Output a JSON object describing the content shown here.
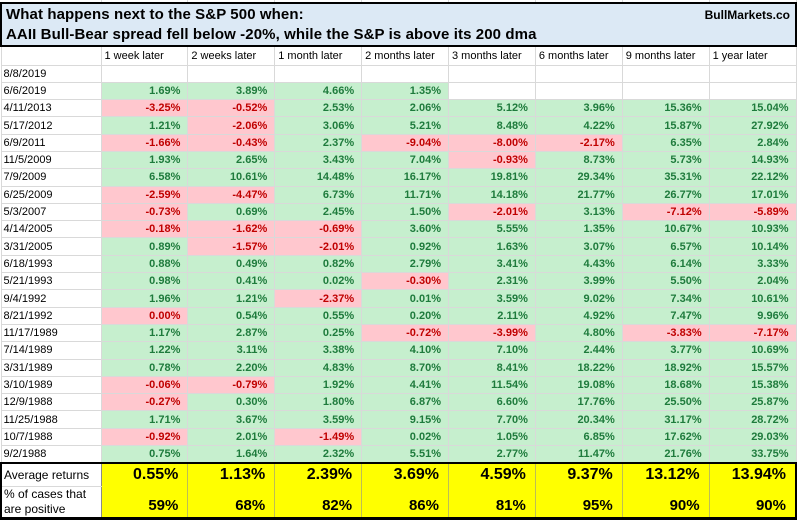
{
  "title": {
    "line1": "What happens next to the S&P 500 when:",
    "line2": "AAII Bull-Bear spread fell below -20%, while the S&P is above its 200 dma",
    "brand": "BullMarkets.co"
  },
  "columns": [
    "1 week later",
    "2 weeks later",
    "1 month later",
    "2 months later",
    "3 months later",
    "6 months later",
    "9 months later",
    "1 year later"
  ],
  "rows": [
    {
      "date": "8/8/2019",
      "values": [
        "",
        "",
        "",
        "",
        "",
        "",
        "",
        ""
      ]
    },
    {
      "date": "6/6/2019",
      "values": [
        "1.69%",
        "3.89%",
        "4.66%",
        "1.35%",
        "",
        "",
        "",
        ""
      ]
    },
    {
      "date": "4/11/2013",
      "values": [
        "-3.25%",
        "-0.52%",
        "2.53%",
        "2.06%",
        "5.12%",
        "3.96%",
        "15.36%",
        "15.04%"
      ]
    },
    {
      "date": "5/17/2012",
      "values": [
        "1.21%",
        "-2.06%",
        "3.06%",
        "5.21%",
        "8.48%",
        "4.22%",
        "15.87%",
        "27.92%"
      ]
    },
    {
      "date": "6/9/2011",
      "values": [
        "-1.66%",
        "-0.43%",
        "2.37%",
        "-9.04%",
        "-8.00%",
        "-2.17%",
        "6.35%",
        "2.84%"
      ]
    },
    {
      "date": "11/5/2009",
      "values": [
        "1.93%",
        "2.65%",
        "3.43%",
        "7.04%",
        "-0.93%",
        "8.73%",
        "5.73%",
        "14.93%"
      ]
    },
    {
      "date": "7/9/2009",
      "values": [
        "6.58%",
        "10.61%",
        "14.48%",
        "16.17%",
        "19.81%",
        "29.34%",
        "35.31%",
        "22.12%"
      ]
    },
    {
      "date": "6/25/2009",
      "values": [
        "-2.59%",
        "-4.47%",
        "6.73%",
        "11.71%",
        "14.18%",
        "21.77%",
        "26.77%",
        "17.01%"
      ]
    },
    {
      "date": "5/3/2007",
      "values": [
        "-0.73%",
        "0.69%",
        "2.45%",
        "1.50%",
        "-2.01%",
        "3.13%",
        "-7.12%",
        "-5.89%"
      ]
    },
    {
      "date": "4/14/2005",
      "values": [
        "-0.18%",
        "-1.62%",
        "-0.69%",
        "3.60%",
        "5.55%",
        "1.35%",
        "10.67%",
        "10.93%"
      ]
    },
    {
      "date": "3/31/2005",
      "values": [
        "0.89%",
        "-1.57%",
        "-2.01%",
        "0.92%",
        "1.63%",
        "3.07%",
        "6.57%",
        "10.14%"
      ]
    },
    {
      "date": "6/18/1993",
      "values": [
        "0.88%",
        "0.49%",
        "0.82%",
        "2.79%",
        "3.41%",
        "4.43%",
        "6.14%",
        "3.33%"
      ]
    },
    {
      "date": "5/21/1993",
      "values": [
        "0.98%",
        "0.41%",
        "0.02%",
        "-0.30%",
        "2.31%",
        "3.99%",
        "5.50%",
        "2.04%"
      ]
    },
    {
      "date": "9/4/1992",
      "values": [
        "1.96%",
        "1.21%",
        "-2.37%",
        "0.01%",
        "3.59%",
        "9.02%",
        "7.34%",
        "10.61%"
      ]
    },
    {
      "date": "8/21/1992",
      "values": [
        "0.00%",
        "0.54%",
        "0.55%",
        "0.20%",
        "2.11%",
        "4.92%",
        "7.47%",
        "9.96%"
      ]
    },
    {
      "date": "11/17/1989",
      "values": [
        "1.17%",
        "2.87%",
        "0.25%",
        "-0.72%",
        "-3.99%",
        "4.80%",
        "-3.83%",
        "-7.17%"
      ]
    },
    {
      "date": "7/14/1989",
      "values": [
        "1.22%",
        "3.11%",
        "3.38%",
        "4.10%",
        "7.10%",
        "2.44%",
        "3.77%",
        "10.69%"
      ]
    },
    {
      "date": "3/31/1989",
      "values": [
        "0.78%",
        "2.20%",
        "4.83%",
        "8.70%",
        "8.41%",
        "18.22%",
        "18.92%",
        "15.57%"
      ]
    },
    {
      "date": "3/10/1989",
      "values": [
        "-0.06%",
        "-0.79%",
        "1.92%",
        "4.41%",
        "11.54%",
        "19.08%",
        "18.68%",
        "15.38%"
      ]
    },
    {
      "date": "12/9/1988",
      "values": [
        "-0.27%",
        "0.30%",
        "1.80%",
        "6.87%",
        "6.60%",
        "17.76%",
        "25.50%",
        "25.87%"
      ]
    },
    {
      "date": "11/25/1988",
      "values": [
        "1.71%",
        "3.67%",
        "3.59%",
        "9.15%",
        "7.70%",
        "20.34%",
        "31.17%",
        "28.72%"
      ]
    },
    {
      "date": "10/7/1988",
      "values": [
        "-0.92%",
        "2.01%",
        "-1.49%",
        "0.02%",
        "1.05%",
        "6.85%",
        "17.62%",
        "29.03%"
      ]
    },
    {
      "date": "9/2/1988",
      "values": [
        "0.75%",
        "1.64%",
        "2.32%",
        "5.51%",
        "2.77%",
        "11.47%",
        "21.76%",
        "33.75%"
      ]
    }
  ],
  "summary": {
    "average_label": "Average returns",
    "positive_label_line1": "% of cases that",
    "positive_label_line2": "are positive",
    "average_values": [
      "0.55%",
      "1.13%",
      "2.39%",
      "3.69%",
      "4.59%",
      "9.37%",
      "13.12%",
      "13.94%"
    ],
    "positive_values": [
      "59%",
      "68%",
      "82%",
      "86%",
      "81%",
      "95%",
      "90%",
      "90%"
    ]
  },
  "colors": {
    "title_bg": "#dce9f5",
    "positive_bg": "#c6efce",
    "positive_text": "#1e7b3c",
    "negative_bg": "#ffc7ce",
    "negative_text": "#c00000",
    "summary_bg": "#ffff00",
    "grid": "#d9d9d9",
    "border": "#000000"
  }
}
